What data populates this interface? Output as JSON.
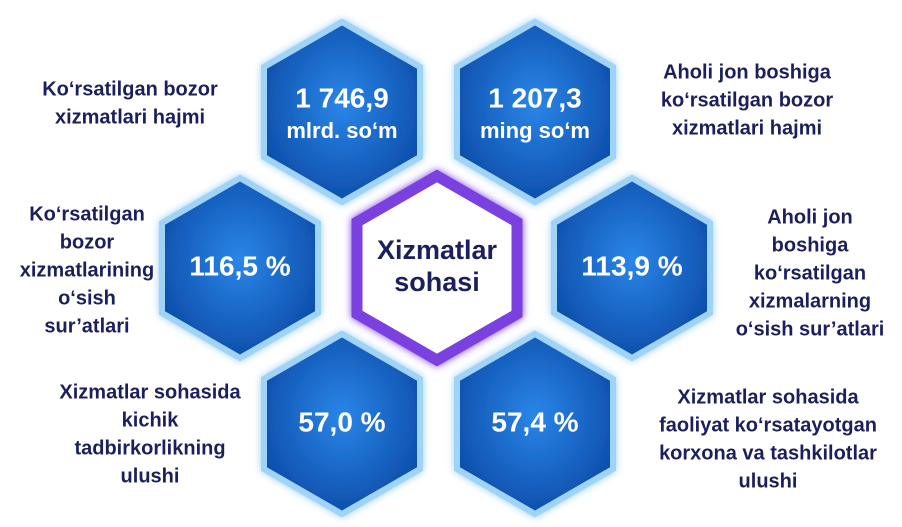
{
  "center": {
    "lines": [
      "Xizmatlar",
      "sohasi"
    ]
  },
  "items": [
    {
      "value": "1 746,9",
      "unit": "mlrd. so‘m",
      "label_lines": [
        "Ko‘rsatilgan bozor",
        "xizmatlari hajmi"
      ]
    },
    {
      "value": "1 207,3",
      "unit": "ming so‘m",
      "label_lines": [
        "Aholi jon boshiga",
        "ko‘rsatilgan bozor",
        "xizmatlari hajmi"
      ]
    },
    {
      "value": "116,5 %",
      "label_lines": [
        "Ko‘rsatilgan",
        "bozor",
        "xizmatlarining",
        "o‘sish",
        "sur’atlari"
      ]
    },
    {
      "value": "113,9 %",
      "label_lines": [
        "Aholi jon",
        "boshiga",
        "ko‘rsatilgan",
        "xizmalarning",
        "o‘sish sur’atlari"
      ]
    },
    {
      "value": "57,0 %",
      "label_lines": [
        "Xizmatlar sohasida",
        "kichik",
        "tadbirkorlikning",
        "ulushi"
      ]
    },
    {
      "value": "57,4 %",
      "label_lines": [
        "Xizmatlar sohasida",
        "faoliyat ko‘rsatayotgan",
        "korxona va tashkilotlar",
        "ulushi"
      ]
    }
  ]
}
